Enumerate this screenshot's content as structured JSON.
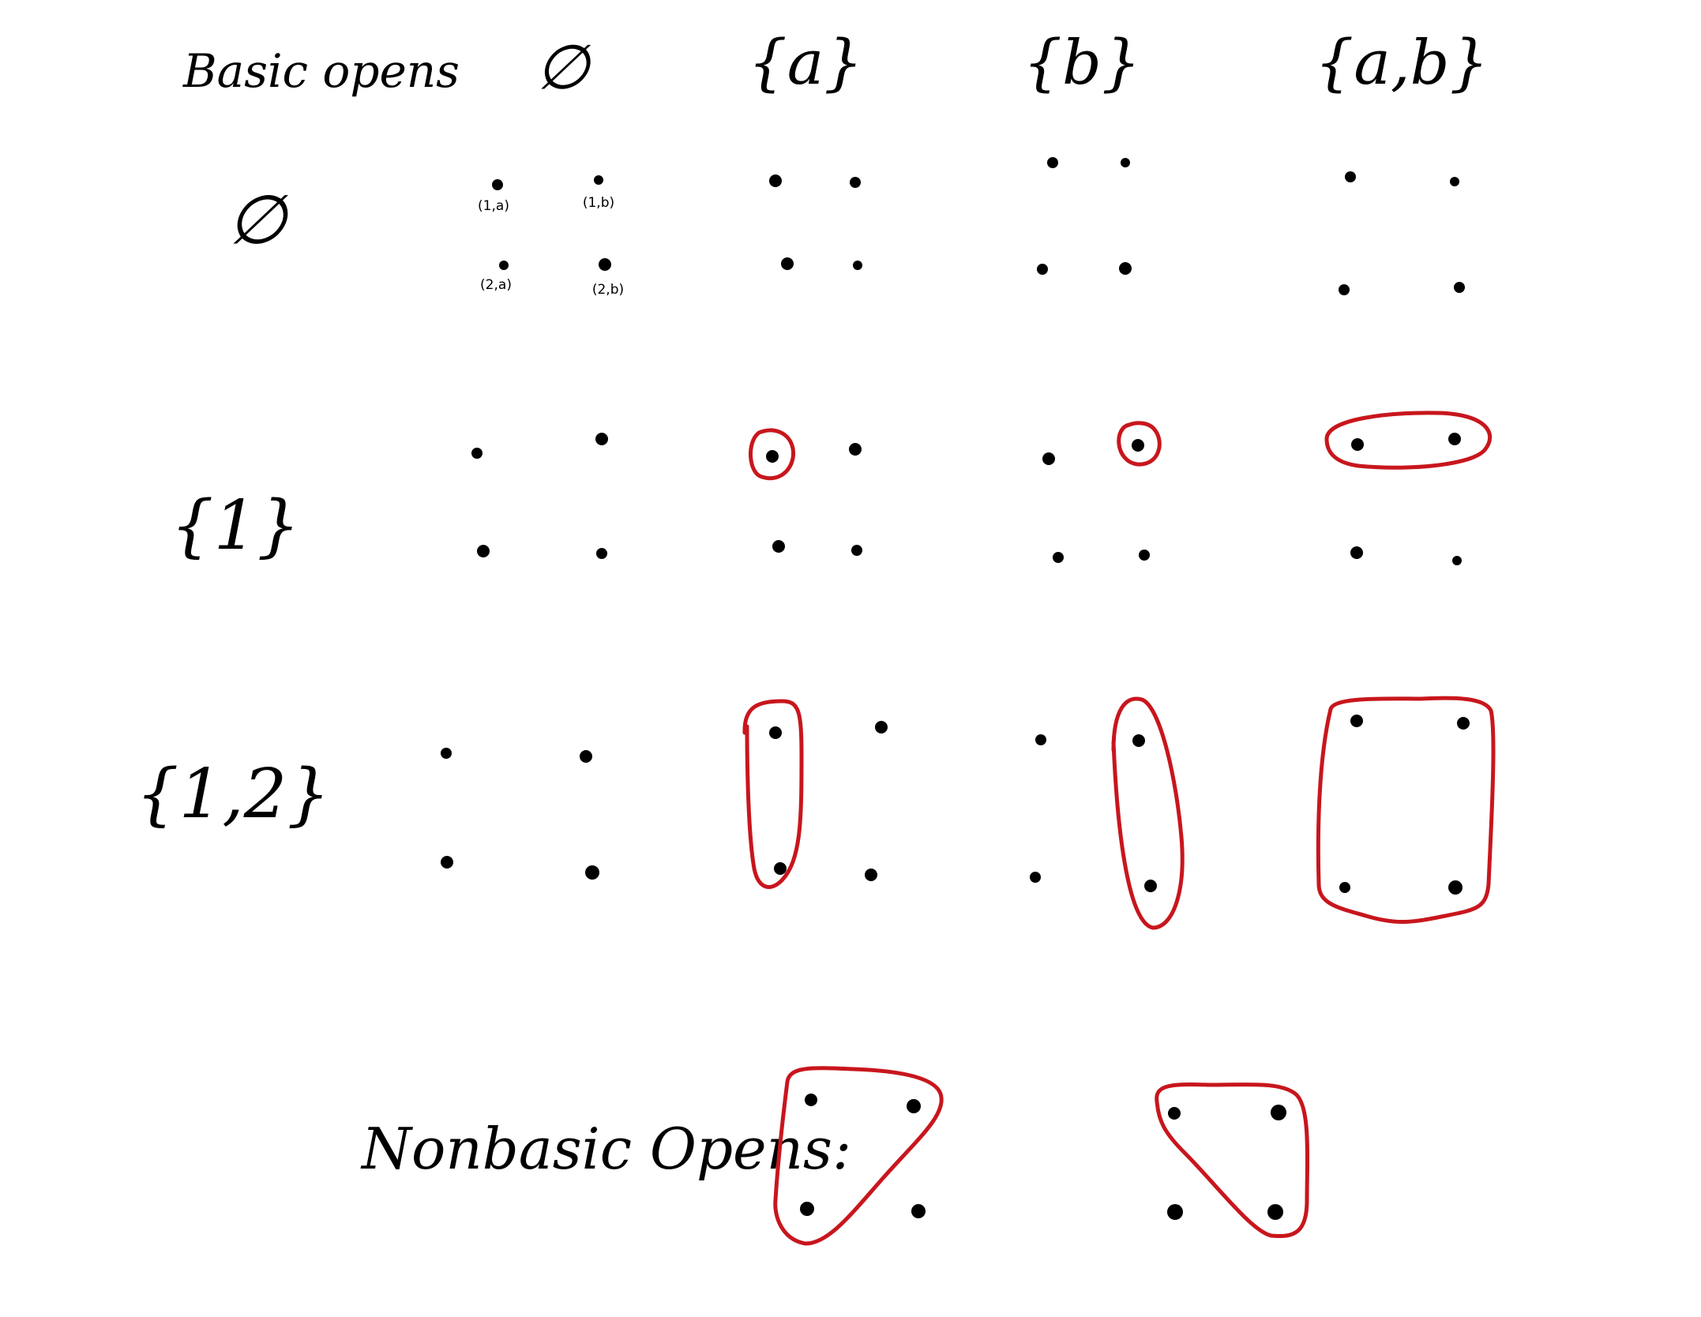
{
  "corner_label": "Basic opens",
  "column_headers": [
    "∅",
    "{a}",
    "{b}",
    "{a,b}"
  ],
  "row_headers": [
    "∅",
    "{1}",
    "{1,2}"
  ],
  "point_labels": [
    "(1,a)",
    "(1,b)",
    "(2,a)",
    "(2,b)"
  ],
  "nonbasic_label": "Nonbasic Opens:",
  "colors": {
    "ink": "#000000",
    "circle": "#c8161d"
  },
  "basic_opens": [
    {
      "row": "∅",
      "col": "∅",
      "circled": []
    },
    {
      "row": "∅",
      "col": "{a}",
      "circled": []
    },
    {
      "row": "∅",
      "col": "{b}",
      "circled": []
    },
    {
      "row": "∅",
      "col": "{a,b}",
      "circled": []
    },
    {
      "row": "{1}",
      "col": "∅",
      "circled": []
    },
    {
      "row": "{1}",
      "col": "{a}",
      "circled": [
        "(1,a)"
      ]
    },
    {
      "row": "{1}",
      "col": "{b}",
      "circled": [
        "(1,b)"
      ]
    },
    {
      "row": "{1}",
      "col": "{a,b}",
      "circled": [
        "(1,a)",
        "(1,b)"
      ]
    },
    {
      "row": "{1,2}",
      "col": "∅",
      "circled": []
    },
    {
      "row": "{1,2}",
      "col": "{a}",
      "circled": [
        "(1,a)",
        "(2,a)"
      ]
    },
    {
      "row": "{1,2}",
      "col": "{b}",
      "circled": [
        "(1,b)",
        "(2,b)"
      ]
    },
    {
      "row": "{1,2}",
      "col": "{a,b}",
      "circled": [
        "(1,a)",
        "(1,b)",
        "(2,a)",
        "(2,b)"
      ]
    }
  ],
  "nonbasic_opens": [
    {
      "circled": [
        "(1,a)",
        "(1,b)",
        "(2,a)"
      ]
    },
    {
      "circled": [
        "(1,a)",
        "(1,b)",
        "(2,b)"
      ]
    }
  ]
}
